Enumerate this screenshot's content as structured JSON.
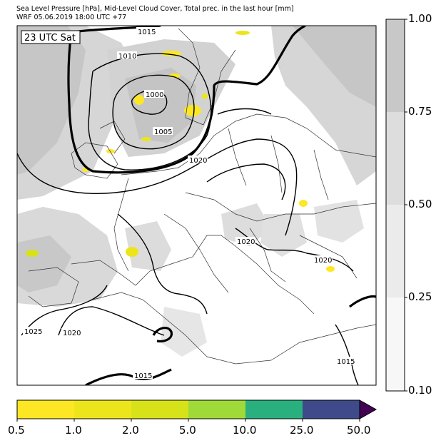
{
  "header": {
    "title": "Sea Level Pressure [hPa], Mid-Level Cloud Cover, Total prec. in the last hour [mm]",
    "subtitle": "WRF 05.06.2019 18:00 UTC +77"
  },
  "map": {
    "time_label": "23 UTC Sat",
    "isobar_labels": [
      "1015",
      "1010",
      "1000",
      "1005",
      "1020",
      "1020",
      "1020",
      "1025",
      "1020",
      "1015",
      "1015"
    ]
  },
  "cloud_colorbar": {
    "ticks": [
      "1.00",
      "0.75",
      "0.50",
      "0.25",
      "0.10"
    ],
    "colors": [
      "#c8c8c8",
      "#dddddd",
      "#ebebeb",
      "#f7f7f7"
    ]
  },
  "precip_colorbar": {
    "ticks": [
      "0.5",
      "1.0",
      "2.0",
      "5.0",
      "10.0",
      "25.0",
      "50.0"
    ],
    "colors": [
      "#fde725",
      "#ede51b",
      "#d7e219",
      "#a0da39",
      "#2ab07f",
      "#3e4a89",
      "#440154"
    ]
  }
}
